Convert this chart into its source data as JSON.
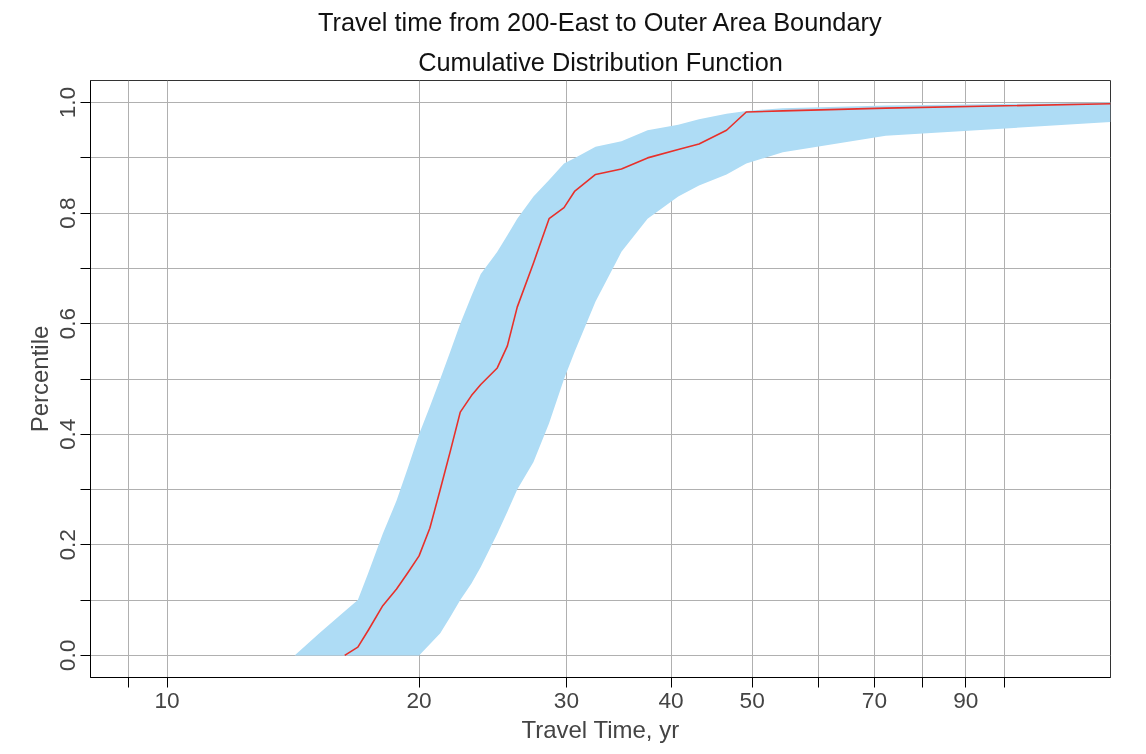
{
  "chart_data": {
    "type": "line",
    "title": "Travel time from 200-East to Outer Area Boundary",
    "subtitle": "Cumulative Distribution Function",
    "xlabel": "Travel Time, yr",
    "ylabel": "Percentile",
    "log": "x",
    "grid": true,
    "marker": "none",
    "line_style": "solid",
    "xlim": [
      8.1,
      134
    ],
    "ylim": [
      -0.04,
      1.04
    ],
    "xticks": [
      {
        "value": 9,
        "label": null
      },
      10,
      20,
      30,
      40,
      50,
      {
        "value": 60,
        "label": null
      },
      70,
      {
        "value": 80,
        "label": null
      },
      90,
      {
        "value": 100,
        "label": null
      }
    ],
    "yticks": [
      {
        "value": 0,
        "label": "0.0"
      },
      {
        "value": 0.1,
        "label": null
      },
      0.2,
      {
        "value": 0.3,
        "label": null
      },
      0.4,
      {
        "value": 0.5,
        "label": null
      },
      0.6,
      {
        "value": 0.7,
        "label": null
      },
      0.8,
      {
        "value": 0.9,
        "label": null
      },
      {
        "value": 1,
        "label": "1.0"
      }
    ],
    "x": [
      14.2,
      15.2,
      16.3,
      16.9,
      17.4,
      18.1,
      18.8,
      19.4,
      20.0,
      20.6,
      21.2,
      21.8,
      22.4,
      23.1,
      23.7,
      24.8,
      25.5,
      26.2,
      27.4,
      28.6,
      29.8,
      30.7,
      32.5,
      34.9,
      37.5,
      40.8,
      43.2,
      46.6,
      49.2,
      54.4,
      72.2,
      134
    ],
    "series": [
      {
        "color": "#e8302a",
        "values": [
          null,
          null,
          0,
          0.015,
          0.046,
          0.09,
          0.12,
          0.15,
          0.18,
          0.23,
          0.3,
          0.37,
          0.44,
          0.47,
          0.49,
          0.52,
          0.56,
          0.63,
          0.71,
          0.79,
          0.81,
          0.84,
          0.87,
          0.88,
          0.9,
          0.915,
          0.925,
          0.95,
          0.983,
          0.985,
          0.99,
          0.998
        ],
        "lower": [
          0,
          0,
          0,
          0,
          0,
          0,
          0,
          0,
          0,
          0.02,
          0.04,
          0.07,
          0.1,
          0.13,
          0.16,
          0.22,
          0.26,
          0.3,
          0.35,
          0.42,
          0.5,
          0.55,
          0.64,
          0.73,
          0.79,
          0.83,
          0.85,
          0.87,
          0.89,
          0.91,
          0.94,
          0.965
        ],
        "upper": [
          0,
          0.04,
          0.08,
          0.1,
          0.15,
          0.22,
          0.28,
          0.34,
          0.4,
          0.45,
          0.5,
          0.55,
          0.6,
          0.65,
          0.69,
          0.73,
          0.76,
          0.79,
          0.83,
          0.86,
          0.89,
          0.9,
          0.92,
          0.93,
          0.95,
          0.96,
          0.97,
          0.98,
          0.985,
          0.99,
          0.995,
          1.0
        ]
      }
    ]
  }
}
